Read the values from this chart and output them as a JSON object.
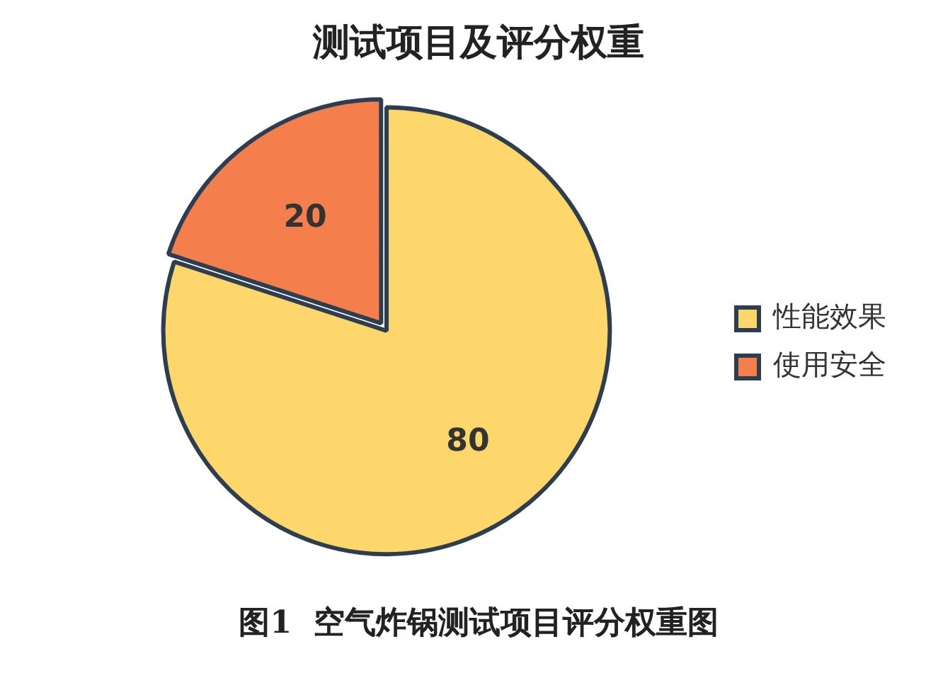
{
  "chart_data": {
    "type": "pie",
    "title": "测试项目及评分权重",
    "categories": [
      "性能效果",
      "使用安全"
    ],
    "values": [
      80,
      20
    ],
    "colors": [
      "#fdd76b",
      "#f47f4c"
    ],
    "data_labels": true,
    "legend": "right",
    "annotations": [
      "图1  空气炸锅测试项目评分权重图"
    ]
  }
}
